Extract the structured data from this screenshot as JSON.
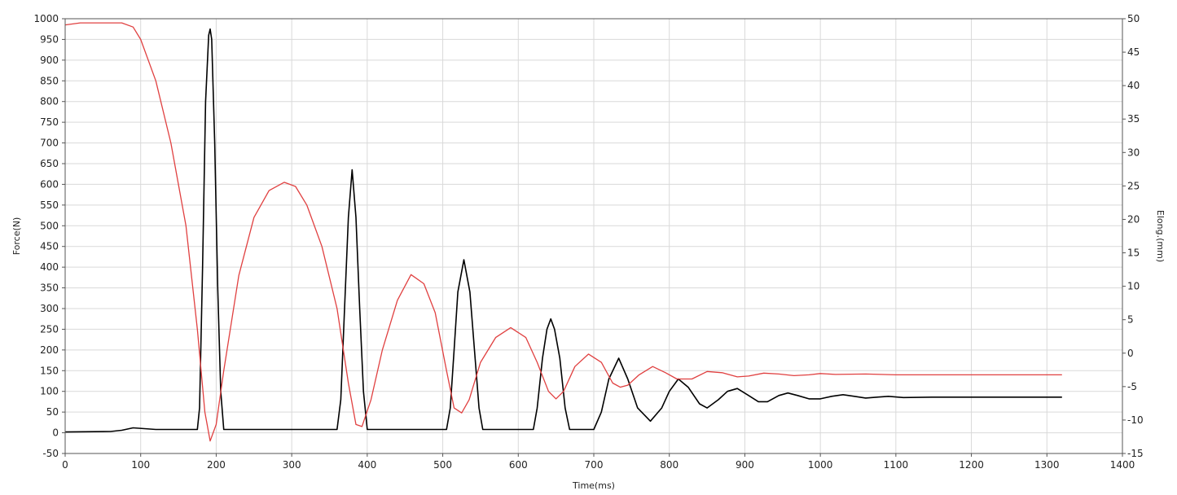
{
  "chart_data": {
    "type": "line",
    "title": "",
    "xlabel": "Time(ms)",
    "ylabel_left": "Force(N)",
    "ylabel_right": "Elong.(mm)",
    "xlim": [
      0,
      1400
    ],
    "ylim_left": [
      -50,
      1000
    ],
    "ylim_right": [
      -15,
      50
    ],
    "x_ticks": [
      0,
      100,
      200,
      300,
      400,
      500,
      600,
      700,
      800,
      900,
      1000,
      1100,
      1200,
      1300,
      1400
    ],
    "y_left_ticks": [
      -50,
      0,
      50,
      100,
      150,
      200,
      250,
      300,
      350,
      400,
      450,
      500,
      550,
      600,
      650,
      700,
      750,
      800,
      850,
      900,
      950,
      1000
    ],
    "y_right_ticks": [
      -15,
      -10,
      -5,
      0,
      5,
      10,
      15,
      20,
      25,
      30,
      35,
      40,
      45,
      50
    ],
    "grid": true,
    "colors": {
      "grid": "#d9d9d9",
      "axes": "#555555"
    },
    "series": [
      {
        "axis": "left",
        "color": "#000000",
        "points": [
          [
            0,
            2
          ],
          [
            60,
            3
          ],
          [
            75,
            6
          ],
          [
            90,
            12
          ],
          [
            105,
            10
          ],
          [
            120,
            8
          ],
          [
            175,
            8
          ],
          [
            178,
            60
          ],
          [
            182,
            400
          ],
          [
            186,
            800
          ],
          [
            190,
            960
          ],
          [
            192,
            975
          ],
          [
            194,
            950
          ],
          [
            198,
            700
          ],
          [
            202,
            350
          ],
          [
            206,
            100
          ],
          [
            210,
            8
          ],
          [
            360,
            8
          ],
          [
            365,
            80
          ],
          [
            370,
            300
          ],
          [
            375,
            520
          ],
          [
            380,
            635
          ],
          [
            385,
            520
          ],
          [
            390,
            300
          ],
          [
            395,
            100
          ],
          [
            400,
            8
          ],
          [
            505,
            8
          ],
          [
            510,
            60
          ],
          [
            515,
            200
          ],
          [
            520,
            340
          ],
          [
            528,
            418
          ],
          [
            536,
            340
          ],
          [
            542,
            200
          ],
          [
            548,
            60
          ],
          [
            553,
            8
          ],
          [
            620,
            8
          ],
          [
            625,
            60
          ],
          [
            632,
            180
          ],
          [
            638,
            250
          ],
          [
            643,
            275
          ],
          [
            648,
            250
          ],
          [
            655,
            180
          ],
          [
            662,
            60
          ],
          [
            668,
            8
          ],
          [
            700,
            8
          ],
          [
            710,
            50
          ],
          [
            720,
            130
          ],
          [
            733,
            180
          ],
          [
            745,
            130
          ],
          [
            758,
            60
          ],
          [
            775,
            28
          ],
          [
            790,
            60
          ],
          [
            800,
            100
          ],
          [
            812,
            130
          ],
          [
            825,
            110
          ],
          [
            840,
            70
          ],
          [
            850,
            60
          ],
          [
            865,
            80
          ],
          [
            877,
            100
          ],
          [
            890,
            107
          ],
          [
            905,
            90
          ],
          [
            918,
            75
          ],
          [
            930,
            75
          ],
          [
            945,
            90
          ],
          [
            957,
            96
          ],
          [
            970,
            90
          ],
          [
            985,
            82
          ],
          [
            1000,
            82
          ],
          [
            1015,
            88
          ],
          [
            1030,
            92
          ],
          [
            1045,
            88
          ],
          [
            1060,
            84
          ],
          [
            1075,
            86
          ],
          [
            1090,
            88
          ],
          [
            1110,
            85
          ],
          [
            1150,
            86
          ],
          [
            1200,
            86
          ],
          [
            1320,
            86
          ]
        ]
      },
      {
        "axis": "left",
        "color": "#e04040",
        "points": [
          [
            0,
            985
          ],
          [
            20,
            990
          ],
          [
            75,
            990
          ],
          [
            90,
            980
          ],
          [
            100,
            950
          ],
          [
            120,
            850
          ],
          [
            140,
            700
          ],
          [
            160,
            500
          ],
          [
            175,
            250
          ],
          [
            185,
            50
          ],
          [
            192,
            -20
          ],
          [
            200,
            20
          ],
          [
            210,
            150
          ],
          [
            230,
            380
          ],
          [
            250,
            520
          ],
          [
            270,
            585
          ],
          [
            290,
            605
          ],
          [
            305,
            595
          ],
          [
            320,
            550
          ],
          [
            340,
            450
          ],
          [
            360,
            300
          ],
          [
            375,
            120
          ],
          [
            385,
            20
          ],
          [
            393,
            15
          ],
          [
            405,
            80
          ],
          [
            420,
            200
          ],
          [
            440,
            320
          ],
          [
            458,
            382
          ],
          [
            475,
            360
          ],
          [
            490,
            290
          ],
          [
            505,
            150
          ],
          [
            515,
            60
          ],
          [
            525,
            48
          ],
          [
            535,
            80
          ],
          [
            550,
            170
          ],
          [
            570,
            230
          ],
          [
            590,
            254
          ],
          [
            610,
            230
          ],
          [
            625,
            170
          ],
          [
            640,
            100
          ],
          [
            650,
            82
          ],
          [
            660,
            100
          ],
          [
            675,
            160
          ],
          [
            693,
            190
          ],
          [
            710,
            170
          ],
          [
            725,
            120
          ],
          [
            735,
            110
          ],
          [
            745,
            115
          ],
          [
            760,
            140
          ],
          [
            778,
            160
          ],
          [
            795,
            145
          ],
          [
            810,
            130
          ],
          [
            830,
            130
          ],
          [
            850,
            148
          ],
          [
            870,
            145
          ],
          [
            890,
            135
          ],
          [
            905,
            137
          ],
          [
            925,
            144
          ],
          [
            945,
            142
          ],
          [
            965,
            138
          ],
          [
            985,
            140
          ],
          [
            1000,
            143
          ],
          [
            1020,
            141
          ],
          [
            1060,
            142
          ],
          [
            1100,
            140
          ],
          [
            1200,
            140
          ],
          [
            1320,
            140
          ]
        ]
      }
    ]
  }
}
